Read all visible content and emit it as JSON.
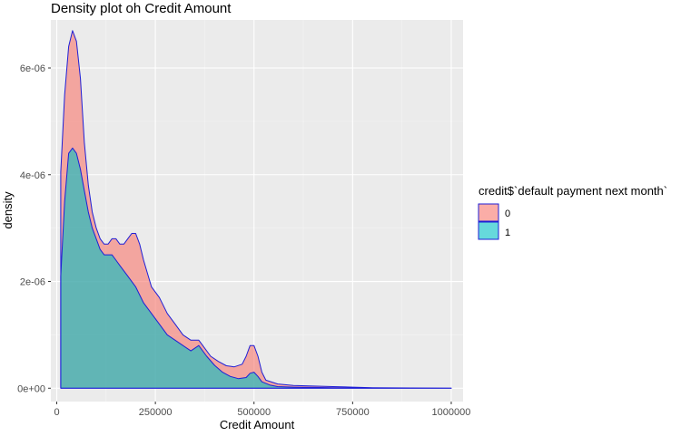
{
  "chart_data": {
    "type": "area",
    "title": "Density plot oh Credit Amount",
    "xlabel": "Credit Amount",
    "ylabel": "density",
    "xlim": [
      -15000,
      1030000
    ],
    "ylim": [
      -2.5e-07,
      6.9e-06
    ],
    "x_ticks": [
      0,
      250000,
      500000,
      750000,
      1000000
    ],
    "x_tick_labels": [
      "0",
      "250000",
      "500000",
      "750000",
      "1000000"
    ],
    "y_ticks": [
      0,
      2e-06,
      4e-06,
      6e-06
    ],
    "y_tick_labels": [
      "0e+00",
      "2e-06",
      "4e-06",
      "6e-06"
    ],
    "grid": true,
    "legend": {
      "title": "credit$`default payment next month`",
      "position": "right",
      "entries": [
        "0",
        "1"
      ]
    },
    "colors": {
      "panel_bg": "#ebebeb",
      "grid_major": "#ffffff",
      "series_0_fill": "#f8766d",
      "series_1_fill": "#00bfc4",
      "outline": "#1f1fd6"
    },
    "series": [
      {
        "name": "0",
        "x": [
          10000,
          20000,
          30000,
          40000,
          50000,
          60000,
          70000,
          80000,
          90000,
          100000,
          110000,
          120000,
          130000,
          140000,
          150000,
          160000,
          170000,
          180000,
          190000,
          200000,
          210000,
          220000,
          240000,
          260000,
          280000,
          300000,
          320000,
          340000,
          360000,
          370000,
          390000,
          410000,
          430000,
          450000,
          470000,
          480000,
          490000,
          500000,
          510000,
          520000,
          530000,
          560000,
          600000,
          650000,
          700000,
          750000,
          800000,
          900000,
          1000000
        ],
        "y": [
          4.05e-06,
          5.5e-06,
          6.4e-06,
          6.7e-06,
          6.5e-06,
          5.8e-06,
          4.6e-06,
          3.8e-06,
          3.3e-06,
          3e-06,
          2.8e-06,
          2.7e-06,
          2.7e-06,
          2.8e-06,
          2.8e-06,
          2.7e-06,
          2.7e-06,
          2.8e-06,
          2.9e-06,
          2.9e-06,
          2.7e-06,
          2.4e-06,
          1.9e-06,
          1.7e-06,
          1.4e-06,
          1.2e-06,
          1e-06,
          9e-07,
          9e-07,
          8e-07,
          6e-07,
          5e-07,
          4.2e-07,
          4e-07,
          4.5e-07,
          6e-07,
          8e-07,
          8e-07,
          6e-07,
          3e-07,
          1.5e-07,
          8e-08,
          5e-08,
          4e-08,
          3e-08,
          2e-08,
          1e-08,
          5e-09,
          0.0
        ]
      },
      {
        "name": "1",
        "x": [
          10000,
          20000,
          30000,
          40000,
          50000,
          60000,
          70000,
          80000,
          90000,
          100000,
          110000,
          120000,
          130000,
          140000,
          150000,
          160000,
          180000,
          200000,
          220000,
          240000,
          260000,
          280000,
          300000,
          320000,
          340000,
          360000,
          380000,
          400000,
          420000,
          440000,
          460000,
          480000,
          490000,
          500000,
          510000,
          520000,
          540000,
          560000,
          600000,
          650000,
          700000,
          750000,
          800000,
          900000,
          1000000
        ],
        "y": [
          2.1e-06,
          3.5e-06,
          4.4e-06,
          4.5e-06,
          4.4e-06,
          4.1e-06,
          3.7e-06,
          3.3e-06,
          3e-06,
          2.8e-06,
          2.6e-06,
          2.5e-06,
          2.5e-06,
          2.5e-06,
          2.4e-06,
          2.3e-06,
          2.1e-06,
          1.9e-06,
          1.6e-06,
          1.4e-06,
          1.2e-06,
          1e-06,
          9e-07,
          8e-07,
          7e-07,
          8e-07,
          6e-07,
          4.3e-07,
          3e-07,
          2.2e-07,
          1.8e-07,
          2e-07,
          2.8e-07,
          3e-07,
          2.2e-07,
          1.2e-07,
          6e-08,
          3e-08,
          2e-08,
          1.5e-08,
          1e-08,
          8e-09,
          5e-09,
          2e-09,
          0.0
        ]
      }
    ]
  }
}
